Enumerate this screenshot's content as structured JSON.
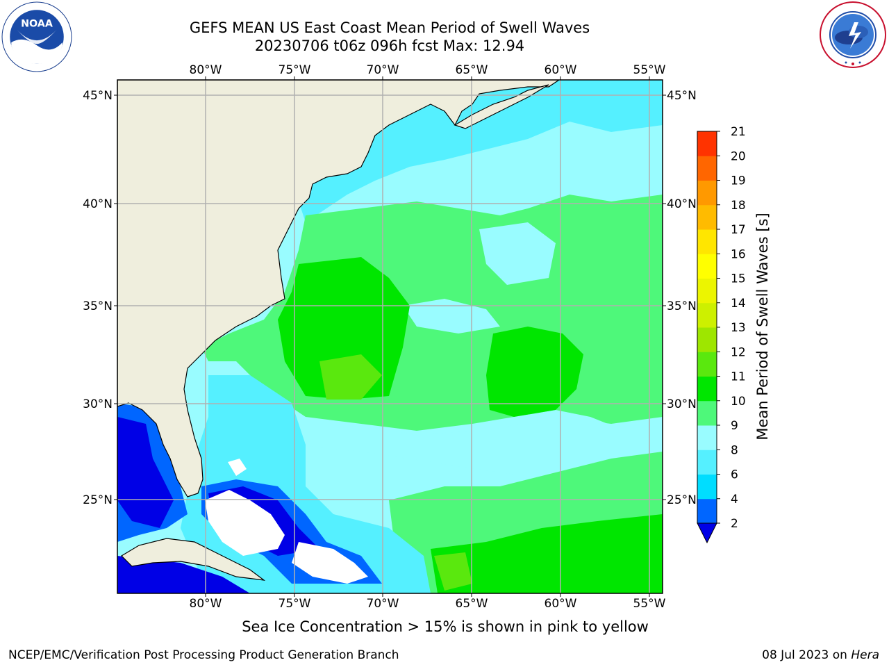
{
  "title": {
    "line1": "GEFS MEAN US East Coast Mean Period of Swell Waves",
    "line2": "20230706 t06z 096h fcst   Max: 12.94"
  },
  "map": {
    "lon_labels": [
      "80°W",
      "75°W",
      "70°W",
      "65°W",
      "60°W",
      "55°W"
    ],
    "lat_labels": [
      "45°N",
      "40°N",
      "35°N",
      "30°N",
      "25°N"
    ],
    "land_color": "#efeedd",
    "grid_color": "#b0b0b0",
    "mean_period_field": "swell wave mean period, mostly 6–10 s, 10–12 s in central Atlantic, 2–6 s in Gulf/Caribbean shallow areas"
  },
  "colorbar": {
    "title": "Mean Period of Swell Waves [s]",
    "ticks": [
      "2",
      "4",
      "6",
      "8",
      "9",
      "10",
      "11",
      "12",
      "13",
      "14",
      "15",
      "16",
      "17",
      "18",
      "19",
      "20",
      "21"
    ],
    "colors": [
      "#0066ff",
      "#00ddff",
      "#55f0ff",
      "#99fcff",
      "#4ef87a",
      "#00e600",
      "#5ae80e",
      "#9ee600",
      "#cdf000",
      "#ecf500",
      "#ffff00",
      "#ffe600",
      "#ffbb00",
      "#ff9900",
      "#ff6600",
      "#ff3300",
      "#ff0000"
    ],
    "under_color": "#0000e6"
  },
  "note": "Sea Ice Concentration > 15% is shown in pink to yellow",
  "footer": {
    "left": "NCEP/EMC/Verification Post Processing Product Generation Branch",
    "right_date": "08 Jul 2023 on ",
    "right_machine": "Hera"
  },
  "logos": {
    "noaa_icon": "noaa-logo-icon",
    "nws_icon": "nws-logo-icon"
  }
}
